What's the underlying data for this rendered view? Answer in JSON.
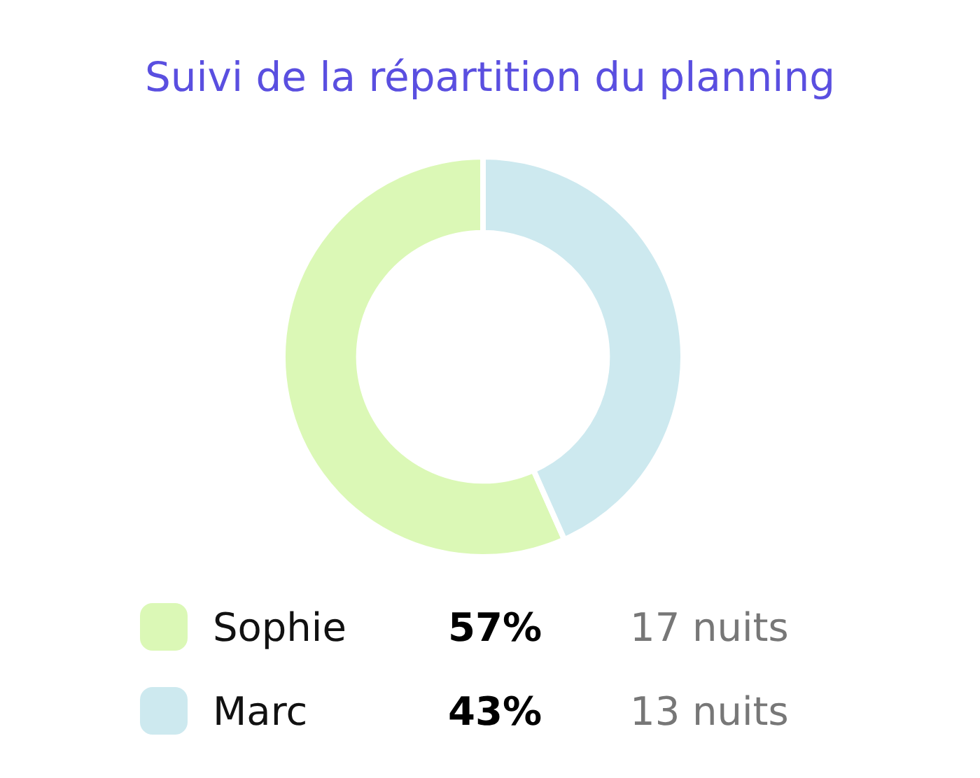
{
  "chart_data": {
    "type": "donut",
    "title": "Suivi de la répartition du planning",
    "categories": [
      "Sophie",
      "Marc"
    ],
    "values": [
      17,
      13
    ],
    "colors": [
      "#dbf8b6",
      "#cde9ef"
    ],
    "value_labels": [
      "17 nuits",
      "13 nuits"
    ],
    "annotations": [
      {
        "text": "57%",
        "x": "Sophie"
      },
      {
        "text": "43%",
        "x": "Marc"
      }
    ],
    "legend": "bottom"
  }
}
